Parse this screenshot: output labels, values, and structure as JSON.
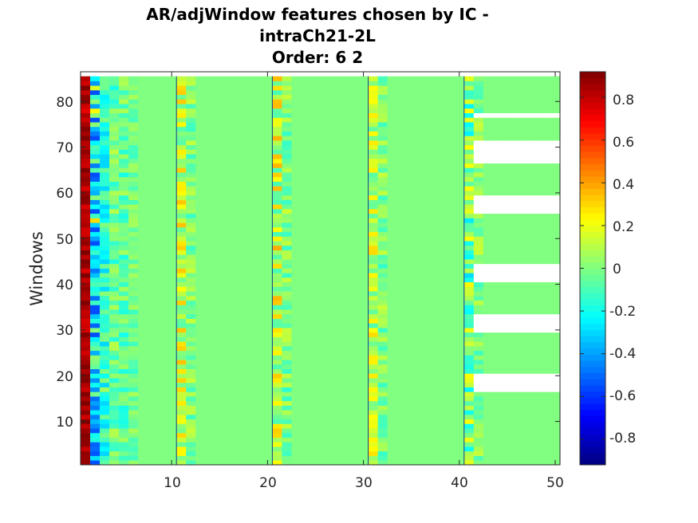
{
  "chart_data": {
    "type": "heatmap",
    "title_lines": [
      "AR/adjWindow features chosen by IC -",
      "intraCh21-2L",
      "Order: 6 2"
    ],
    "xlabel": "",
    "ylabel": "Windows",
    "x_ticks": [
      "10",
      "20",
      "30",
      "40",
      "50"
    ],
    "x_tick_values": [
      10,
      20,
      30,
      40,
      50
    ],
    "y_ticks": [
      "10",
      "20",
      "30",
      "40",
      "50",
      "60",
      "70",
      "80"
    ],
    "y_tick_values": [
      10,
      20,
      30,
      40,
      50,
      60,
      70,
      80
    ],
    "xlim": [
      0.5,
      50.5
    ],
    "ylim": [
      0.5,
      86.5
    ],
    "n_columns": 50,
    "n_windows": 85,
    "colormap": "jet",
    "clim": [
      -0.92,
      0.92
    ],
    "colorbar_ticks": [
      "0.8",
      "0.6",
      "0.4",
      "0.2",
      "0",
      "-0.2",
      "-0.4",
      "-0.6",
      "-0.8"
    ],
    "colorbar_tick_values": [
      0.8,
      0.6,
      0.4,
      0.2,
      0,
      -0.2,
      -0.4,
      -0.6,
      -0.8
    ],
    "channel_separators_x": [
      10.5,
      20.5,
      30.5,
      40.5
    ],
    "missing_window_ranges_cols_42_to_50": [
      [
        17,
        20
      ],
      [
        30,
        33
      ],
      [
        41,
        44
      ],
      [
        56,
        59
      ],
      [
        67,
        71
      ],
      [
        77,
        77
      ]
    ],
    "column_profiles": [
      {
        "column": 1,
        "approx_value": 0.85,
        "range": [
          0.7,
          0.92
        ]
      },
      {
        "column": 2,
        "approx_value": -0.35,
        "range": [
          -0.55,
          0.3
        ]
      },
      {
        "column": 3,
        "approx_value": -0.15,
        "range": [
          -0.3,
          0.1
        ]
      },
      {
        "column": 4,
        "approx_value": -0.05,
        "range": [
          -0.2,
          0.12
        ]
      },
      {
        "column": 5,
        "approx_value": -0.05,
        "range": [
          -0.2,
          0.12
        ]
      },
      {
        "column": 6,
        "approx_value": -0.02,
        "range": [
          -0.15,
          0.08
        ]
      },
      {
        "column": 11,
        "approx_value": 0.15,
        "range": [
          -0.1,
          0.35
        ]
      },
      {
        "column": 12,
        "approx_value": 0.0,
        "range": [
          -0.15,
          0.15
        ]
      },
      {
        "column": 21,
        "approx_value": 0.12,
        "range": [
          -0.1,
          0.45
        ]
      },
      {
        "column": 22,
        "approx_value": 0.0,
        "range": [
          -0.15,
          0.15
        ]
      },
      {
        "column": 31,
        "approx_value": 0.12,
        "range": [
          -0.1,
          0.3
        ]
      },
      {
        "column": 32,
        "approx_value": 0.0,
        "range": [
          -0.15,
          0.15
        ]
      },
      {
        "column": 41,
        "approx_value": 0.0,
        "range": [
          -0.3,
          0.25
        ]
      },
      {
        "column": 42,
        "approx_value": 0.0,
        "range": [
          -0.15,
          0.15
        ]
      },
      {
        "other_columns": true,
        "approx_value": 0.0
      }
    ],
    "colors": {
      "background": "#ffffff",
      "axis": "#262626",
      "nan": "#ffffff",
      "zero_color": "#80ff80"
    }
  }
}
